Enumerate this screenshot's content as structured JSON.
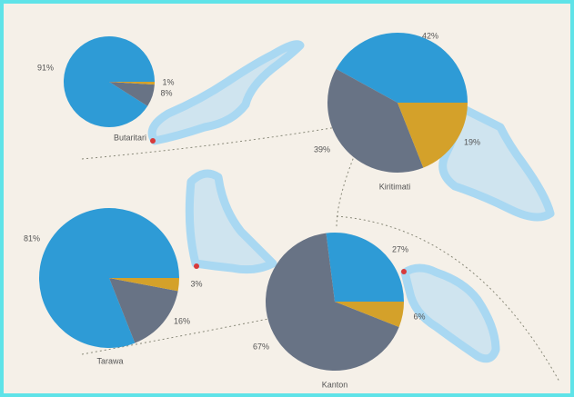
{
  "colors": [
    "#2e9bd6",
    "#687385",
    "#d4a12a"
  ],
  "pies": [
    {
      "label": "Butaritari",
      "values": [
        91,
        8,
        1
      ],
      "value_labels": [
        "91%",
        "8%",
        "1%"
      ]
    },
    {
      "label": "Kiritimati",
      "values": [
        42,
        39,
        19
      ],
      "value_labels": [
        "42%",
        "39%",
        "19%"
      ]
    },
    {
      "label": "Tarawa",
      "values": [
        81,
        16,
        3
      ],
      "value_labels": [
        "81%",
        "16%",
        "3%"
      ]
    },
    {
      "label": "Kanton",
      "values": [
        27,
        67,
        6
      ],
      "value_labels": [
        "27%",
        "67%",
        "6%"
      ]
    }
  ]
}
